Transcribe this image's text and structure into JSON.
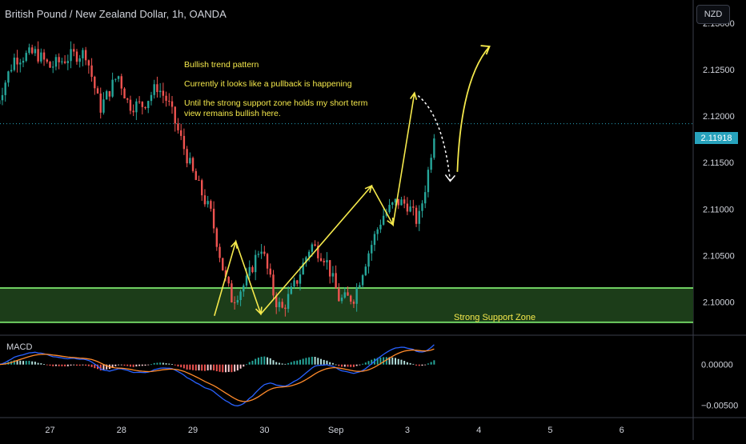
{
  "header": {
    "symbol_title": "British Pound / New Zealand Dollar, 1h, OANDA",
    "currency_button": "NZD"
  },
  "annotations": {
    "pattern_note": "Bullish trend pattern",
    "pullback_note": "Currently it looks like a pullback is happening",
    "outlook_note": "Until the strong support zone holds my short term\nview remains bullish here.",
    "zone_label": "Strong Support Zone"
  },
  "indicator": {
    "name": "MACD"
  },
  "last_price": "2.11918",
  "colors": {
    "background": "#000000",
    "bull_candle": "#26a69a",
    "bear_candle": "#ef5350",
    "support_zone_fill": "#1c3d19",
    "support_zone_line": "#6fcf62",
    "annotation": "#f5e94c",
    "macd_line": "#2962ff",
    "signal_line": "#ff8a2b",
    "price_tag": "#27a2bc"
  },
  "chart_data": {
    "type": "candlestick",
    "price_axis": {
      "ylim": [
        2.0965,
        2.1325
      ],
      "ticks": [
        2.13,
        2.125,
        2.12,
        2.115,
        2.11,
        2.105,
        2.1
      ],
      "tick_labels": [
        "2.13000",
        "2.12500",
        "2.12000",
        "2.11500",
        "2.11000",
        "2.10500",
        "2.10000"
      ]
    },
    "macd_axis": {
      "ylim": [
        -0.0065,
        0.0035
      ],
      "ticks": [
        0.0,
        -0.005
      ],
      "tick_labels": [
        "0.00000",
        "−0.00500"
      ]
    },
    "time_axis": {
      "labels": [
        "27",
        "28",
        "29",
        "30",
        "Sep",
        "3",
        "4",
        "5",
        "6"
      ],
      "day_index": [
        0,
        1,
        2,
        3,
        4,
        5,
        6,
        7,
        8
      ],
      "xlim_days": [
        -0.7,
        9.0
      ]
    },
    "support_zone": {
      "low": 2.0978,
      "high": 2.1015
    },
    "last_price_value": 2.11918,
    "candle_range_days": [
      -0.75,
      5.4
    ],
    "path_anchors": [
      {
        "t": -0.75,
        "p": 2.1213
      },
      {
        "t": -0.5,
        "p": 2.1262
      },
      {
        "t": -0.2,
        "p": 2.1268
      },
      {
        "t": 0.0,
        "p": 2.1253
      },
      {
        "t": 0.3,
        "p": 2.1265
      },
      {
        "t": 0.5,
        "p": 2.1268
      },
      {
        "t": 0.7,
        "p": 2.1208
      },
      {
        "t": 0.95,
        "p": 2.1245
      },
      {
        "t": 1.1,
        "p": 2.1212
      },
      {
        "t": 1.3,
        "p": 2.1212
      },
      {
        "t": 1.5,
        "p": 2.1232
      },
      {
        "t": 1.65,
        "p": 2.1215
      },
      {
        "t": 2.0,
        "p": 2.1138
      },
      {
        "t": 2.25,
        "p": 2.1095
      },
      {
        "t": 2.45,
        "p": 2.1025
      },
      {
        "t": 2.55,
        "p": 2.1002
      },
      {
        "t": 2.75,
        "p": 2.1022
      },
      {
        "t": 2.95,
        "p": 2.1062
      },
      {
        "t": 3.15,
        "p": 2.1002
      },
      {
        "t": 3.25,
        "p": 2.0992
      },
      {
        "t": 3.45,
        "p": 2.1022
      },
      {
        "t": 3.65,
        "p": 2.1062
      },
      {
        "t": 3.85,
        "p": 2.1048
      },
      {
        "t": 4.05,
        "p": 2.1002
      },
      {
        "t": 4.25,
        "p": 2.1005
      },
      {
        "t": 4.45,
        "p": 2.1052
      },
      {
        "t": 4.65,
        "p": 2.1092
      },
      {
        "t": 4.85,
        "p": 2.1108
      },
      {
        "t": 5.0,
        "p": 2.1105
      },
      {
        "t": 5.15,
        "p": 2.1085
      },
      {
        "t": 5.28,
        "p": 2.1135
      },
      {
        "t": 5.38,
        "p": 2.1185
      },
      {
        "t": 5.4,
        "p": 2.1192
      }
    ],
    "drawings": {
      "yellow_zigzag": [
        {
          "t": 2.3,
          "p": 2.0985
        },
        {
          "t": 2.6,
          "p": 2.1065
        },
        {
          "t": 2.95,
          "p": 2.0987
        },
        {
          "t": 4.5,
          "p": 2.1125
        },
        {
          "t": 4.8,
          "p": 2.1083
        },
        {
          "t": 5.1,
          "p": 2.1225
        }
      ],
      "dashed_pullback": [
        {
          "t": 5.15,
          "p": 2.1222
        },
        {
          "t": 5.5,
          "p": 2.12
        },
        {
          "t": 5.6,
          "p": 2.113
        }
      ],
      "bullish_projection": [
        {
          "t": 5.7,
          "p": 2.114
        },
        {
          "t": 5.75,
          "p": 2.124
        },
        {
          "t": 6.15,
          "p": 2.1275
        }
      ]
    }
  }
}
